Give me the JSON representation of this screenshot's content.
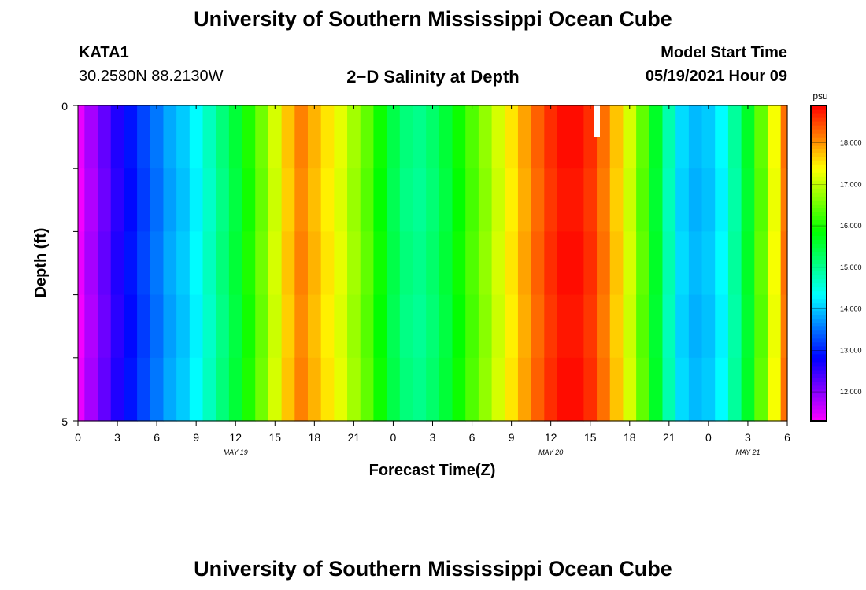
{
  "header": {
    "title": "University of Southern Mississippi Ocean Cube",
    "station_id": "KATA1",
    "coordinates": "30.2580N  88.2130W",
    "plot_title": "2−D Salinity at Depth",
    "model_start_label": "Model Start Time",
    "model_start_value": "05/19/2021 Hour 09"
  },
  "footer": {
    "title": "University of Southern Mississippi Ocean Cube"
  },
  "colorbar": {
    "unit": "psu",
    "tick_labels": [
      "12.000",
      "13.000",
      "14.000",
      "15.000",
      "16.000",
      "17.000",
      "18.000"
    ],
    "min": 11.3,
    "max": 18.9
  },
  "chart_data": {
    "type": "heatmap",
    "title": "2−D Salinity at Depth",
    "xlabel": "Forecast Time(Z)",
    "ylabel": "Depth (ft)",
    "x_hours_from_may19_00z": [
      0,
      1,
      2,
      3,
      4,
      5,
      6,
      7,
      8,
      9,
      10,
      11,
      12,
      13,
      14,
      15,
      16,
      17,
      18,
      19,
      20,
      21,
      22,
      23,
      24,
      25,
      26,
      27,
      28,
      29,
      30,
      31,
      32,
      33,
      34,
      35,
      36,
      37,
      38,
      39,
      40,
      41,
      42,
      43,
      44,
      45,
      46,
      47,
      48,
      49,
      50,
      51,
      52,
      53,
      54
    ],
    "x_tick_labels": [
      "0",
      "3",
      "6",
      "9",
      "12",
      "15",
      "18",
      "21",
      "0",
      "3",
      "6",
      "9",
      "12",
      "15",
      "18",
      "21",
      "0",
      "3",
      "6"
    ],
    "date_labels": [
      "MAY 19",
      "MAY 20",
      "MAY 21"
    ],
    "y_tick_labels": [
      "0",
      "5"
    ],
    "y_range": [
      0,
      5
    ],
    "z_unit": "psu",
    "salinity_psu": [
      11.4,
      11.8,
      12.2,
      12.6,
      12.9,
      13.2,
      13.5,
      13.8,
      14.0,
      14.3,
      14.7,
      15.1,
      15.5,
      16.0,
      16.5,
      17.1,
      17.7,
      18.1,
      17.8,
      17.5,
      17.2,
      16.8,
      16.4,
      15.9,
      15.4,
      15.1,
      15.0,
      15.2,
      15.5,
      15.9,
      16.3,
      16.7,
      17.1,
      17.5,
      17.9,
      18.3,
      18.6,
      18.8,
      18.8,
      18.6,
      18.2,
      17.7,
      17.1,
      16.4,
      15.6,
      14.8,
      14.1,
      13.9,
      14.0,
      14.3,
      14.9,
      15.6,
      16.4,
      17.3,
      18.2
    ],
    "zlim": [
      11.3,
      18.9
    ],
    "missing_data": "white bar near hour 39.5, top depth layer"
  }
}
